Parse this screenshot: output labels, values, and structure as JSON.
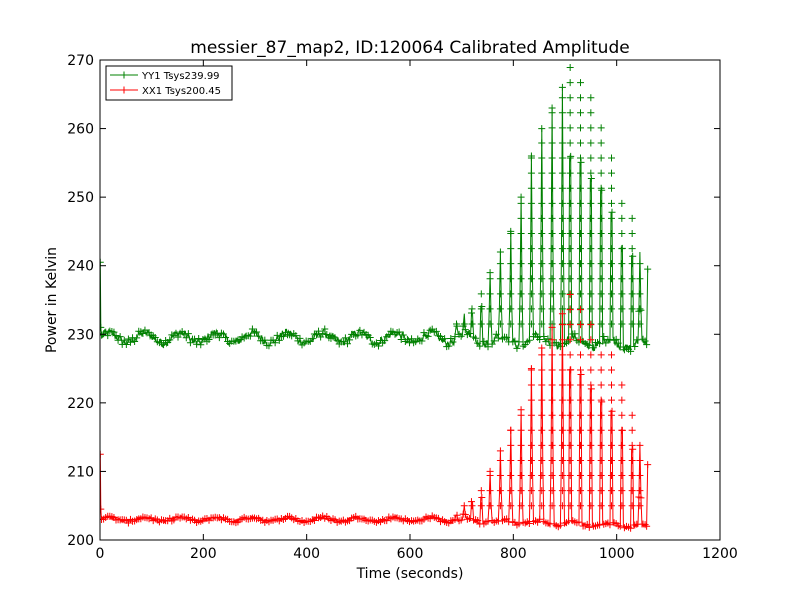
{
  "chart_data": {
    "type": "line",
    "title": "messier_87_map2, ID:120064 Calibrated Amplitude",
    "xlabel": "Time (seconds)",
    "ylabel": "Power in Kelvin",
    "xlim": [
      0,
      1200
    ],
    "ylim": [
      200,
      270
    ],
    "xticks": [
      0,
      200,
      400,
      600,
      800,
      1000,
      1200
    ],
    "yticks": [
      200,
      210,
      220,
      230,
      240,
      250,
      260,
      270
    ],
    "grid": false,
    "legend_position": "top-left",
    "series": [
      {
        "name": "YY1 Tsys239.99",
        "color": "#008000",
        "marker": "+",
        "baseline": 229.5,
        "baseline_ripple": 1.2,
        "baseline_end": 228.5,
        "start_spike": 240.5,
        "end_value": 239.5,
        "x_end": 1060,
        "peaks": [
          {
            "x": 690,
            "y": 232
          },
          {
            "x": 705,
            "y": 233
          },
          {
            "x": 720,
            "y": 235
          },
          {
            "x": 738,
            "y": 237
          },
          {
            "x": 755,
            "y": 239
          },
          {
            "x": 775,
            "y": 242
          },
          {
            "x": 795,
            "y": 245
          },
          {
            "x": 815,
            "y": 250
          },
          {
            "x": 835,
            "y": 256
          },
          {
            "x": 855,
            "y": 260
          },
          {
            "x": 875,
            "y": 263
          },
          {
            "x": 895,
            "y": 266
          },
          {
            "x": 910,
            "y": 269
          },
          {
            "x": 930,
            "y": 268
          },
          {
            "x": 950,
            "y": 265
          },
          {
            "x": 970,
            "y": 262
          },
          {
            "x": 990,
            "y": 257
          },
          {
            "x": 1010,
            "y": 250
          },
          {
            "x": 1030,
            "y": 248
          },
          {
            "x": 1045,
            "y": 242
          }
        ]
      },
      {
        "name": "XX1 Tsys200.45",
        "color": "#ff0000",
        "marker": "+",
        "baseline": 203,
        "baseline_ripple": 0.5,
        "baseline_end": 202,
        "start_spike": 212.5,
        "end_value": 211,
        "x_end": 1060,
        "peaks": [
          {
            "x": 690,
            "y": 204
          },
          {
            "x": 705,
            "y": 205
          },
          {
            "x": 720,
            "y": 207
          },
          {
            "x": 738,
            "y": 208
          },
          {
            "x": 755,
            "y": 210
          },
          {
            "x": 775,
            "y": 213
          },
          {
            "x": 795,
            "y": 216
          },
          {
            "x": 815,
            "y": 219
          },
          {
            "x": 835,
            "y": 225
          },
          {
            "x": 855,
            "y": 228
          },
          {
            "x": 875,
            "y": 231
          },
          {
            "x": 895,
            "y": 233
          },
          {
            "x": 910,
            "y": 236
          },
          {
            "x": 930,
            "y": 235
          },
          {
            "x": 950,
            "y": 232
          },
          {
            "x": 970,
            "y": 229
          },
          {
            "x": 990,
            "y": 227
          },
          {
            "x": 1010,
            "y": 223
          },
          {
            "x": 1030,
            "y": 219
          },
          {
            "x": 1045,
            "y": 214
          }
        ]
      }
    ]
  }
}
